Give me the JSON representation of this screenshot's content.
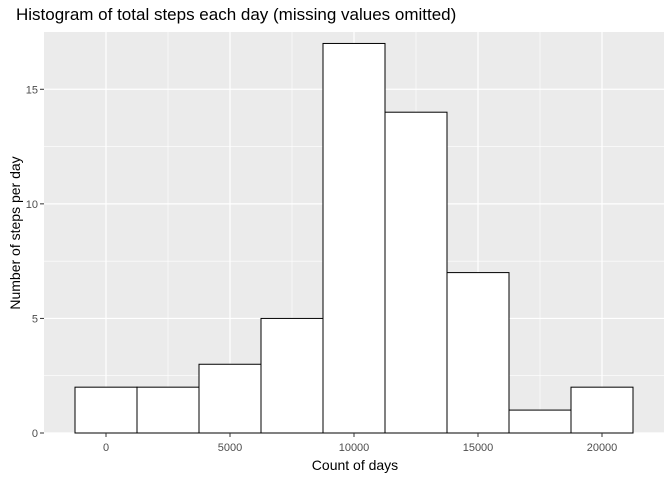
{
  "chart_data": {
    "type": "bar",
    "title": "Histogram of total steps each day (missing values omitted)",
    "xlabel": "Count of days",
    "ylabel": "Number of steps per day",
    "x_ticks": [
      0,
      5000,
      10000,
      15000,
      20000
    ],
    "y_ticks": [
      0,
      5,
      10,
      15
    ],
    "xlim": [
      -2500,
      22500
    ],
    "ylim": [
      0,
      17.5
    ],
    "bins": [
      {
        "start": -1250,
        "end": 1250,
        "count": 2
      },
      {
        "start": 1250,
        "end": 3750,
        "count": 2
      },
      {
        "start": 3750,
        "end": 6250,
        "count": 3
      },
      {
        "start": 6250,
        "end": 8750,
        "count": 5
      },
      {
        "start": 8750,
        "end": 11250,
        "count": 17
      },
      {
        "start": 11250,
        "end": 13750,
        "count": 14
      },
      {
        "start": 13750,
        "end": 16250,
        "count": 7
      },
      {
        "start": 16250,
        "end": 18750,
        "count": 1
      },
      {
        "start": 18750,
        "end": 21250,
        "count": 2
      }
    ],
    "grid": true,
    "panel_background": "#ebebeb",
    "grid_color": "#ffffff",
    "bar_fill": "#ffffff",
    "bar_outline": "#000000",
    "tick_label_color": "#4d4d4d"
  }
}
